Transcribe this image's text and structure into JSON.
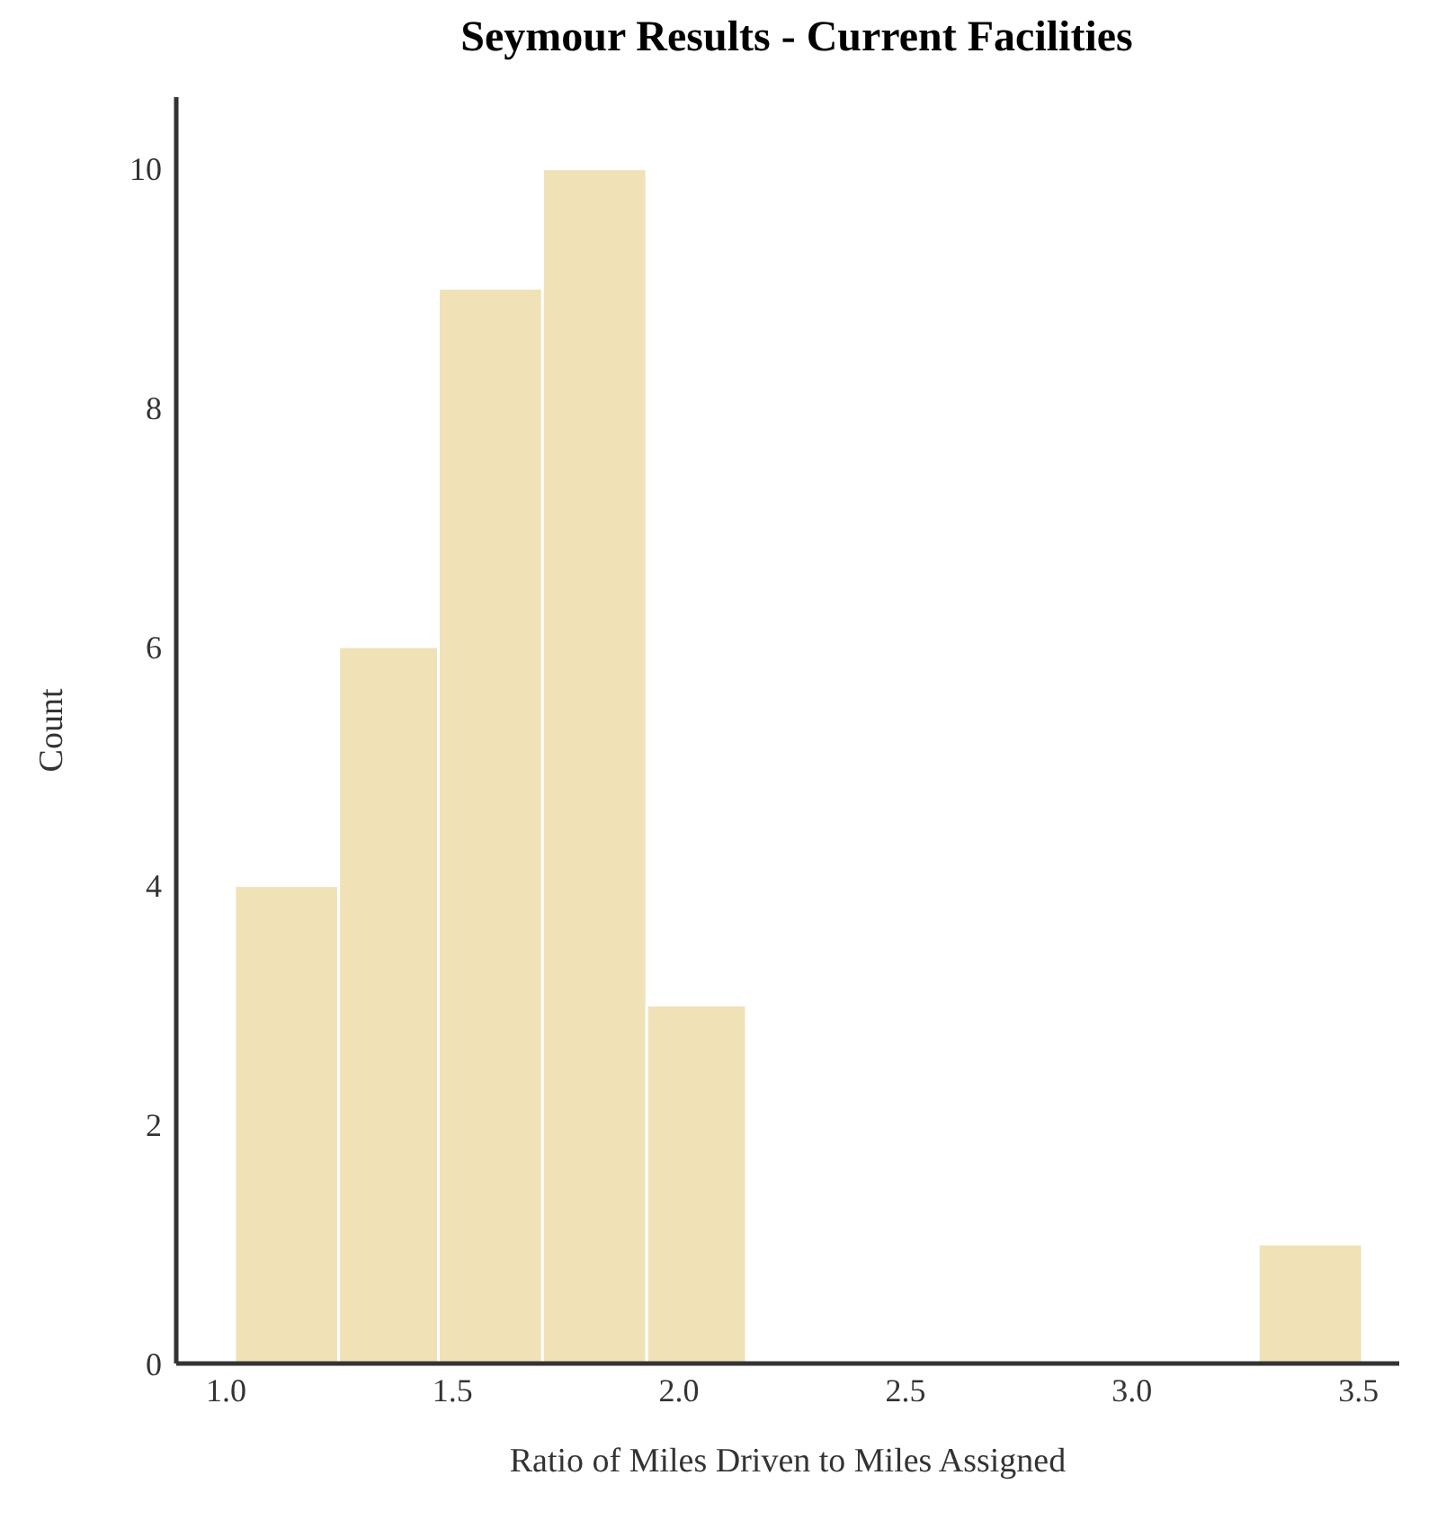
{
  "chart_data": {
    "type": "histogram",
    "title": "Seymour Results - Current Facilities",
    "xlabel": "Ratio of Miles Driven to Miles Assigned",
    "ylabel": "Count",
    "bins": [
      1.02,
      1.25,
      1.47,
      1.7,
      1.93,
      2.15,
      3.28,
      3.51
    ],
    "values": [
      4,
      6,
      9,
      10,
      3,
      0,
      1
    ],
    "color": "#f0e2b6",
    "xlim": [
      0.89,
      3.59
    ],
    "xticks": [
      {
        "value": 1,
        "label": "1.0"
      },
      1.5,
      {
        "value": 2,
        "label": "2.0"
      },
      2.5,
      {
        "value": 3,
        "label": "3.0"
      },
      3.5
    ],
    "ylim": [
      0,
      10.6
    ],
    "yticks": [
      0,
      2,
      4,
      6,
      8,
      10
    ],
    "grid": false,
    "legend": false
  }
}
